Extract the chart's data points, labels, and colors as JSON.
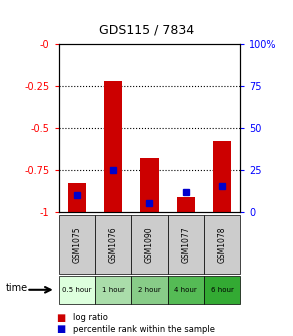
{
  "title": "GDS115 / 7834",
  "samples": [
    "GSM1075",
    "GSM1076",
    "GSM1090",
    "GSM1077",
    "GSM1078"
  ],
  "time_labels": [
    "0.5 hour",
    "1 hour",
    "2 hour",
    "4 hour",
    "6 hour"
  ],
  "log_ratio": [
    -0.83,
    -0.22,
    -0.68,
    -0.91,
    -0.58
  ],
  "percentile": [
    10,
    25,
    5,
    12,
    15
  ],
  "ylim_left": [
    -1.0,
    0.0
  ],
  "ylim_right": [
    0,
    100
  ],
  "yticks_left": [
    0.0,
    -0.25,
    -0.5,
    -0.75,
    -1.0
  ],
  "ytick_labels_left": [
    "-0",
    "-0.25",
    "-0.5",
    "-0.75",
    "-1"
  ],
  "yticks_right": [
    0,
    25,
    50,
    75,
    100
  ],
  "ytick_labels_right": [
    "0",
    "25",
    "50",
    "75",
    "100%"
  ],
  "bar_color": "#cc0000",
  "percentile_color": "#0000cc",
  "sample_bg_color": "#cccccc",
  "bar_width": 0.5,
  "legend_log_ratio": "log ratio",
  "legend_percentile": "percentile rank within the sample",
  "time_label": "time",
  "time_colors": [
    "#ddffdd",
    "#aaddaa",
    "#88cc88",
    "#55bb55",
    "#33aa33"
  ]
}
